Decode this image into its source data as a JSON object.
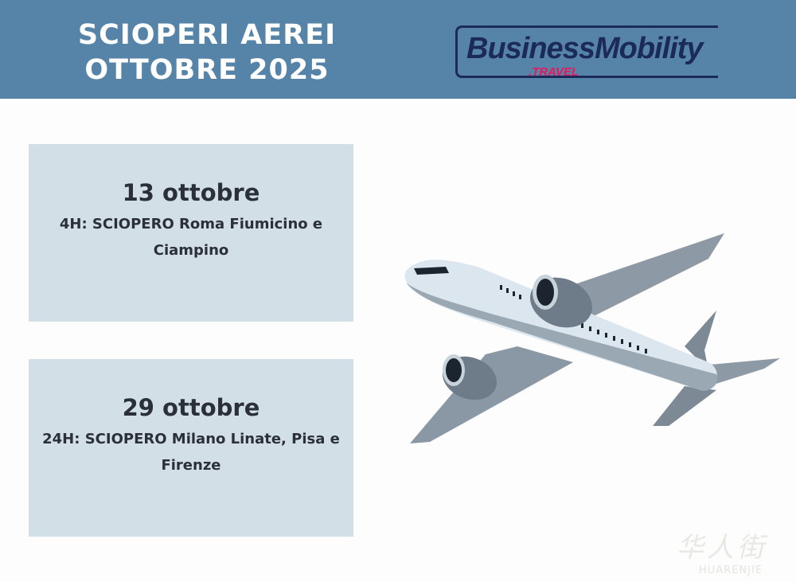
{
  "header": {
    "title_line1": "SCIOPERI AEREI",
    "title_line2": "OTTOBRE 2025",
    "background": "#5584a8"
  },
  "logo": {
    "main": "BusinessMobility",
    "sub": ".TRAVEL",
    "accent": "#e8175d",
    "color": "#1c2a5a"
  },
  "strikes": [
    {
      "date": "13 ottobre",
      "description": "4H: SCIOPERO Roma Fiumicino e Ciampino"
    },
    {
      "date": "29 ottobre",
      "description": "24H: SCIOPERO Milano Linate, Pisa e Firenze"
    }
  ],
  "watermark": {
    "chinese": "华人街",
    "latin": "HUARENJIE"
  }
}
